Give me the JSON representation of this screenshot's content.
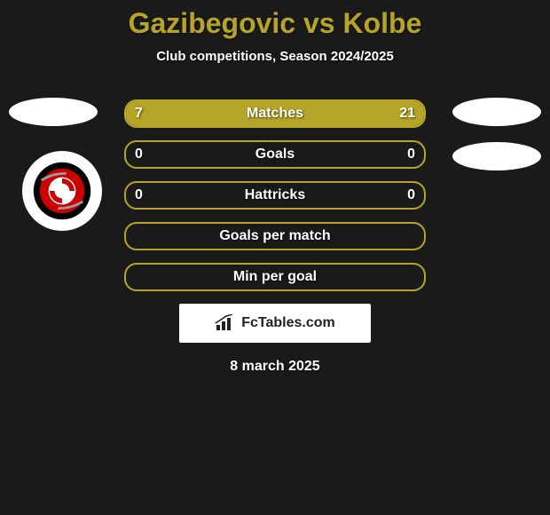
{
  "background_color": "#1a1a1a",
  "title": {
    "text": "Gazibegovic vs Kolbe",
    "color": "#b5a428",
    "fontsize": 32
  },
  "subtitle": {
    "text": "Club competitions, Season 2024/2025",
    "color": "#ffffff",
    "fontsize": 15
  },
  "bars": {
    "border_color": "#b5a428",
    "fill_color": "#b5a428",
    "text_color": "#ffffff",
    "label_fontsize": 16,
    "rows": [
      {
        "label": "Matches",
        "left": "7",
        "right": "21",
        "left_fill_pct": 25,
        "right_fill_pct": 75
      },
      {
        "label": "Goals",
        "left": "0",
        "right": "0",
        "left_fill_pct": 0,
        "right_fill_pct": 0
      },
      {
        "label": "Hattricks",
        "left": "0",
        "right": "0",
        "left_fill_pct": 0,
        "right_fill_pct": 0
      },
      {
        "label": "Goals per match",
        "left": "",
        "right": "",
        "left_fill_pct": 0,
        "right_fill_pct": 0
      },
      {
        "label": "Min per goal",
        "left": "",
        "right": "",
        "left_fill_pct": 0,
        "right_fill_pct": 0
      }
    ]
  },
  "jerseys": {
    "shape_color": "#ffffff"
  },
  "club_logo": {
    "bg": "#ffffff",
    "outer": "#000000",
    "ring": "#cc0000",
    "inner": "#ffffff",
    "accent": "#9a9a9a"
  },
  "branding": {
    "text": "FcTables.com",
    "bg": "#ffffff",
    "color": "#222222",
    "icon_color": "#222222"
  },
  "date": {
    "text": "8 march 2025",
    "color": "#ffffff",
    "fontsize": 16
  }
}
